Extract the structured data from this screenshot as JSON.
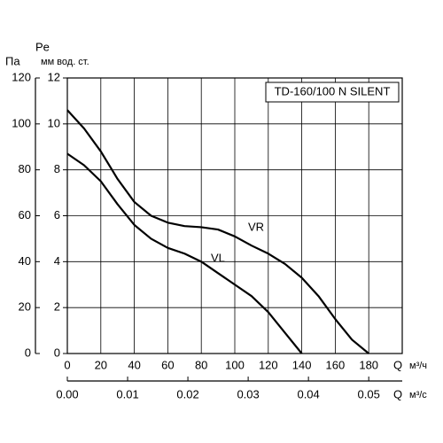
{
  "chart_data": {
    "type": "line",
    "title": "TD-160/100 N SILENT",
    "y_label": "Pe",
    "y_unit": "Па",
    "y2_unit": "мм вод. ст.",
    "x_label": "Q",
    "x_unit": "м³/ч",
    "x2_label": "Q",
    "x2_unit": "м³/с",
    "x": [
      0,
      10,
      20,
      30,
      40,
      50,
      60,
      70,
      80,
      90,
      100,
      110,
      120,
      130,
      140,
      150,
      160,
      170,
      180
    ],
    "series": [
      {
        "name": "VR",
        "color": "#000000",
        "values": [
          106,
          98,
          88,
          76,
          66,
          60,
          57,
          55.5,
          55,
          54,
          51,
          47,
          43.5,
          39,
          33,
          25,
          15,
          6,
          0
        ]
      },
      {
        "name": "VL",
        "color": "#000000",
        "values": [
          87,
          82,
          75,
          65,
          56,
          50,
          46,
          43.5,
          40,
          35,
          30,
          25,
          18,
          9,
          0,
          null,
          null,
          null,
          null
        ]
      }
    ],
    "xlim": [
      0,
      200
    ],
    "xticks": [
      0,
      20,
      40,
      60,
      80,
      100,
      120,
      140,
      160,
      180
    ],
    "ylim": [
      0,
      120
    ],
    "yticks": [
      0,
      20,
      40,
      60,
      80,
      100,
      120
    ],
    "y2lim": [
      0,
      12
    ],
    "y2ticks": [
      0,
      2,
      4,
      6,
      8,
      10,
      12
    ],
    "x2lim": [
      0,
      0.05556
    ],
    "x2ticks": [
      {
        "value": 0,
        "label": "0.00"
      },
      0.01,
      0.02,
      0.03,
      0.04,
      0.05
    ],
    "grid": true
  }
}
